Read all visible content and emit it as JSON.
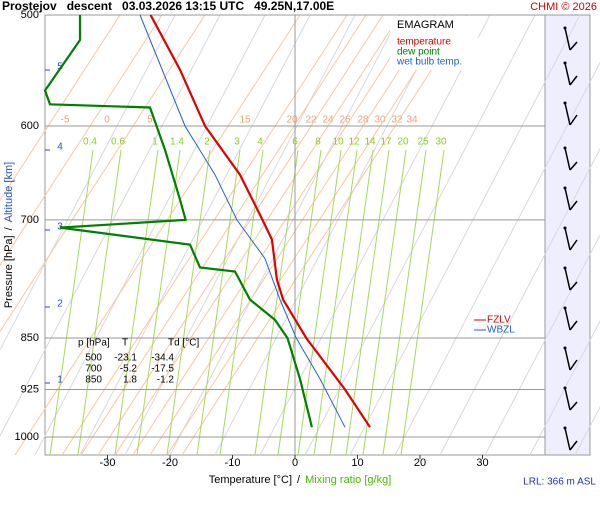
{
  "chart_data": {
    "type": "line",
    "title": "Prostejov   descent   03.03.2026 13:15 UTC   49.25N,17.00E",
    "credit": "CHMI © 2026",
    "legend_title": "EMAGRAM",
    "x_label": [
      "Temperature [°C]",
      "/",
      "Mixing ratio [g/kg]"
    ],
    "y_label": [
      "Pressure [hPa]",
      "/",
      "Altitude [km]"
    ],
    "footer": "LRL: 366 m ASL",
    "xlim": [
      -40,
      40
    ],
    "xticks": [
      -30,
      -20,
      -10,
      0,
      10,
      20,
      30
    ],
    "ylim": [
      500,
      1030
    ],
    "yticks": [
      500,
      600,
      700,
      850,
      925,
      1000
    ],
    "log_y": true,
    "grid": true,
    "altitude_ticks": [
      1,
      2,
      3,
      4,
      5
    ],
    "mixing_ratio_labels": [
      "0.4",
      "0.6",
      "1",
      "1.4",
      "2",
      "3",
      "4",
      "6",
      "8",
      "10",
      "12",
      "14",
      "17",
      "20",
      "25",
      "30"
    ],
    "adiabat_labels": [
      "-5",
      "0",
      "5",
      "15",
      "20",
      "22",
      "24",
      "26",
      "28",
      "30",
      "32",
      "34"
    ],
    "levels": [
      "FZLV",
      "WBZL"
    ],
    "series": [
      {
        "name": "temperature",
        "color": "#e00000",
        "x": [
          -23.1,
          -18.4,
          -14.4,
          -8.8,
          -5.2,
          -3.7,
          -2.9,
          -1.9,
          1.8,
          8,
          12
        ],
        "values": [
          500,
          547,
          600,
          650,
          700,
          723,
          772,
          798,
          850,
          925,
          984
        ]
      },
      {
        "name": "dew point",
        "color": "#008000",
        "x": [
          -34.4,
          -34.4,
          -40,
          -39.2,
          -23.2,
          -20.8,
          -18.4,
          -17.5,
          -37.6,
          -16.8,
          -15.2,
          -9.6,
          -7.2,
          -3.2,
          -1.2,
          0.8,
          2.7
        ],
        "values": [
          500,
          521,
          566,
          579,
          582,
          624,
          677,
          700,
          709,
          729,
          757,
          762,
          798,
          825,
          850,
          909,
          984
        ]
      },
      {
        "name": "wet bulb temp.",
        "color": "#2060d0",
        "x": [
          -24.8,
          -17.6,
          -12.8,
          -9.3,
          -4.8,
          -2.4,
          0.2,
          4,
          8
        ],
        "values": [
          500,
          600,
          650,
          700,
          746,
          798,
          850,
          909,
          984
        ]
      }
    ],
    "table": {
      "header": [
        "p [hPa]",
        "T",
        "Td [°C]"
      ],
      "rows": [
        [
          "500",
          "-23.1",
          "-34.4"
        ],
        [
          "700",
          "-5.2",
          "-17.5"
        ],
        [
          "850",
          "1.8",
          "-1.2"
        ]
      ]
    }
  }
}
